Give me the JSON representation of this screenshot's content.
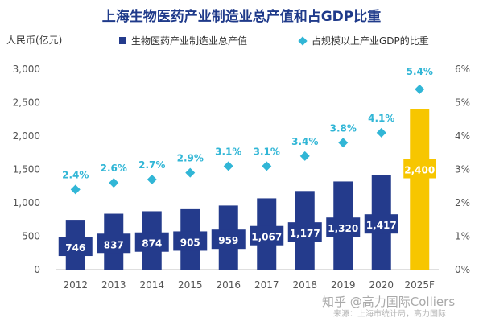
{
  "chart_data": {
    "type": "bar",
    "title": "上海生物医药产业制造业总产值和占GDP比重",
    "ylabel": "人民币(亿元)",
    "categories": [
      "2012",
      "2013",
      "2014",
      "2015",
      "2016",
      "2017",
      "2018",
      "2019",
      "2020",
      "2025F"
    ],
    "ylim": [
      0,
      3000
    ],
    "yticks": [
      "0",
      "500",
      "1,000",
      "1,500",
      "2,000",
      "2,500",
      "3,000"
    ],
    "y2lim": [
      0,
      6
    ],
    "y2ticks": [
      "0%",
      "1%",
      "2%",
      "3%",
      "4%",
      "5%",
      "6%"
    ],
    "series": [
      {
        "name": "生物医药产业制造业总产值",
        "kind": "bar",
        "values": [
          746,
          837,
          874,
          905,
          959,
          1067,
          1177,
          1320,
          1417,
          2400
        ],
        "labels": [
          "746",
          "837",
          "874",
          "905",
          "959",
          "1,067",
          "1,177",
          "1,320",
          "1,417",
          "2,400"
        ]
      },
      {
        "name": "占规模以上产业GDP的比重",
        "kind": "scatter",
        "axis": "right",
        "values": [
          2.4,
          2.6,
          2.7,
          2.9,
          3.1,
          3.1,
          3.4,
          3.8,
          4.1,
          5.4
        ],
        "labels": [
          "2.4%",
          "2.6%",
          "2.7%",
          "2.9%",
          "3.1%",
          "3.1%",
          "3.4%",
          "3.8%",
          "4.1%",
          "5.4%"
        ]
      }
    ],
    "colors": {
      "bar": "#243b8c",
      "bar_forecast": "#f7c600",
      "diamond": "#31b6d6",
      "title": "#1f3a8a",
      "axis_text": "#555555"
    }
  },
  "watermark": "知乎 @高力国际Colliers",
  "source": "来源：上海市统计局，高力国际"
}
